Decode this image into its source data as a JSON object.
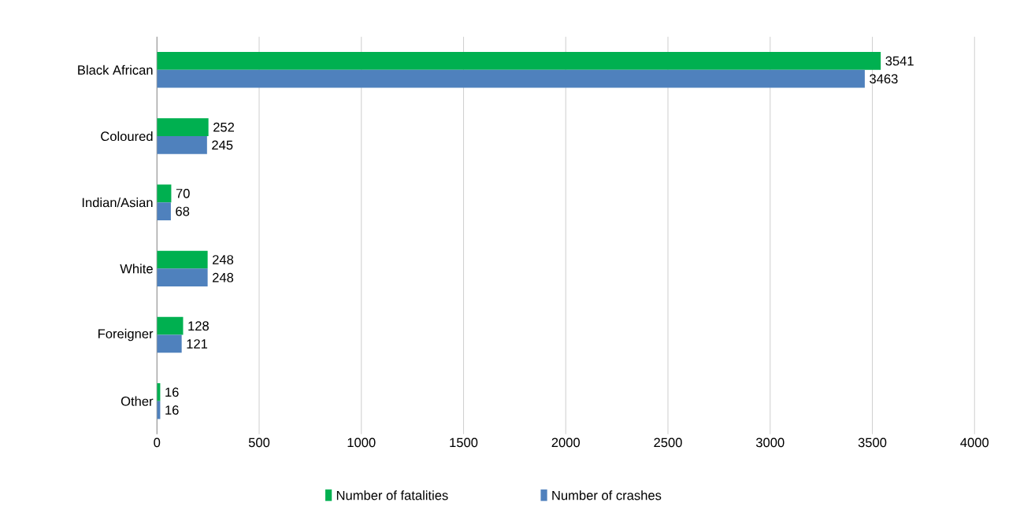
{
  "chart_data": {
    "type": "bar",
    "orientation": "horizontal",
    "categories": [
      "Black African",
      "Coloured",
      "Indian/Asian",
      "White",
      "Foreigner",
      "Other"
    ],
    "series": [
      {
        "name": "Number of fatalities",
        "color": "#00b050",
        "values": [
          3541,
          252,
          70,
          248,
          128,
          16
        ]
      },
      {
        "name": "Number of crashes",
        "color": "#4f81bd",
        "values": [
          3463,
          245,
          68,
          248,
          121,
          16
        ]
      }
    ],
    "xlim": [
      0,
      4000
    ],
    "xticks": [
      0,
      500,
      1000,
      1500,
      2000,
      2500,
      3000,
      3500,
      4000
    ],
    "grid": "x",
    "legend": "bottom",
    "data_labels": true
  }
}
